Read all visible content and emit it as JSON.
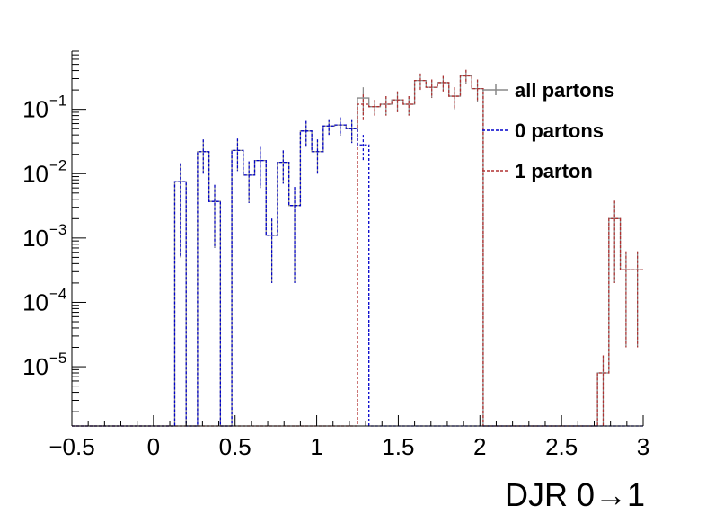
{
  "chart_data": {
    "type": "line",
    "title": "",
    "xlabel": "DJR 0→1",
    "ylabel": "",
    "xlim": [
      -0.5,
      3
    ],
    "ylim": [
      1.2e-06,
      0.8
    ],
    "yscale": "log",
    "grid": false,
    "legend_position": "top-right",
    "x_ticks": [
      -0.5,
      0,
      0.5,
      1,
      1.5,
      2,
      2.5,
      3
    ],
    "x_tick_labels": [
      "−0.5",
      "0",
      "0.5",
      "1",
      "1.5",
      "2",
      "2.5",
      "3"
    ],
    "y_ticks": [
      {
        "value": 1e-05,
        "base": "10",
        "exp": "−5"
      },
      {
        "value": 0.0001,
        "base": "10",
        "exp": "−4"
      },
      {
        "value": 0.001,
        "base": "10",
        "exp": "−3"
      },
      {
        "value": 0.01,
        "base": "10",
        "exp": "−2"
      },
      {
        "value": 0.1,
        "base": "10",
        "exp": "−1"
      }
    ],
    "bin_edges": [
      -0.5,
      -0.43,
      -0.36,
      -0.29,
      -0.22,
      -0.15,
      -0.08,
      -0.01,
      0.06,
      0.13,
      0.2,
      0.27,
      0.34,
      0.41,
      0.48,
      0.55,
      0.62,
      0.69,
      0.76,
      0.83,
      0.9,
      0.97,
      1.04,
      1.11,
      1.18,
      1.25,
      1.32,
      1.39,
      1.46,
      1.53,
      1.6,
      1.67,
      1.74,
      1.81,
      1.88,
      1.95,
      2.02,
      2.09,
      2.16,
      2.23,
      2.3,
      2.37,
      2.44,
      2.51,
      2.58,
      2.65,
      2.72,
      2.79,
      2.86,
      2.93,
      3.0
    ],
    "series": [
      {
        "name": "all partons",
        "color": "#888888",
        "dash": "solid",
        "values": [
          0,
          0,
          0,
          0,
          0,
          0,
          0,
          0,
          0,
          0.0075,
          0,
          0.022,
          0.0037,
          0,
          0.023,
          0.0095,
          0.016,
          0.0011,
          0.015,
          0.0032,
          0.046,
          0.022,
          0.055,
          0.057,
          0.05,
          0.15,
          0.11,
          0.12,
          0.14,
          0.12,
          0.28,
          0.22,
          0.26,
          0.16,
          0.33,
          0.21,
          0,
          0,
          0,
          0,
          0,
          0,
          0,
          0,
          0,
          0,
          8e-06,
          0.002,
          0.00032,
          0.00032
        ],
        "errors": [
          0,
          0,
          0,
          0,
          0,
          0,
          0,
          0,
          0,
          0.007,
          0,
          0.012,
          0.003,
          0,
          0.012,
          0.006,
          0.01,
          0.0009,
          0.008,
          0.003,
          0.02,
          0.012,
          0.015,
          0.018,
          0.02,
          0.07,
          0.03,
          0.04,
          0.05,
          0.04,
          0.08,
          0.07,
          0.07,
          0.06,
          0.08,
          0.08,
          0,
          0,
          0,
          0,
          0,
          0,
          0,
          0,
          0,
          0,
          7e-06,
          0.0018,
          0.0003,
          0.0003
        ]
      },
      {
        "name": "0 partons",
        "color": "#0000cc",
        "dash": "dotted",
        "values": [
          0,
          0,
          0,
          0,
          0,
          0,
          0,
          0,
          0,
          0.0075,
          0,
          0.022,
          0.0037,
          0,
          0.023,
          0.0095,
          0.016,
          0.0011,
          0.015,
          0.0032,
          0.046,
          0.022,
          0.055,
          0.057,
          0.05,
          0.028,
          0,
          0,
          0,
          0,
          0,
          0,
          0,
          0,
          0,
          0,
          0,
          0,
          0,
          0,
          0,
          0,
          0,
          0,
          0,
          0,
          0,
          0,
          0,
          0
        ],
        "errors": [
          0,
          0,
          0,
          0,
          0,
          0,
          0,
          0,
          0,
          0.007,
          0,
          0.012,
          0.003,
          0,
          0.012,
          0.006,
          0.01,
          0.0009,
          0.008,
          0.003,
          0.02,
          0.012,
          0.015,
          0.018,
          0.02,
          0.012,
          0,
          0,
          0,
          0,
          0,
          0,
          0,
          0,
          0,
          0,
          0,
          0,
          0,
          0,
          0,
          0,
          0,
          0,
          0,
          0,
          0,
          0,
          0,
          0
        ]
      },
      {
        "name": "1 parton",
        "color": "#b03030",
        "dash": "dotted",
        "values": [
          0,
          0,
          0,
          0,
          0,
          0,
          0,
          0,
          0,
          0,
          0,
          0,
          0,
          0,
          0,
          0,
          0,
          0,
          0,
          0,
          0,
          0,
          0,
          0,
          0,
          0.12,
          0.11,
          0.12,
          0.14,
          0.12,
          0.28,
          0.22,
          0.26,
          0.16,
          0.33,
          0.21,
          0,
          0,
          0,
          0,
          0,
          0,
          0,
          0,
          0,
          0,
          8e-06,
          0.002,
          0.00032,
          0.00032
        ],
        "errors": [
          0,
          0,
          0,
          0,
          0,
          0,
          0,
          0,
          0,
          0,
          0,
          0,
          0,
          0,
          0,
          0,
          0,
          0,
          0,
          0,
          0,
          0,
          0,
          0,
          0,
          0.05,
          0.03,
          0.04,
          0.05,
          0.04,
          0.08,
          0.07,
          0.07,
          0.06,
          0.08,
          0.08,
          0,
          0,
          0,
          0,
          0,
          0,
          0,
          0,
          0,
          0,
          7e-06,
          0.0018,
          0.0003,
          0.0003
        ]
      }
    ]
  }
}
